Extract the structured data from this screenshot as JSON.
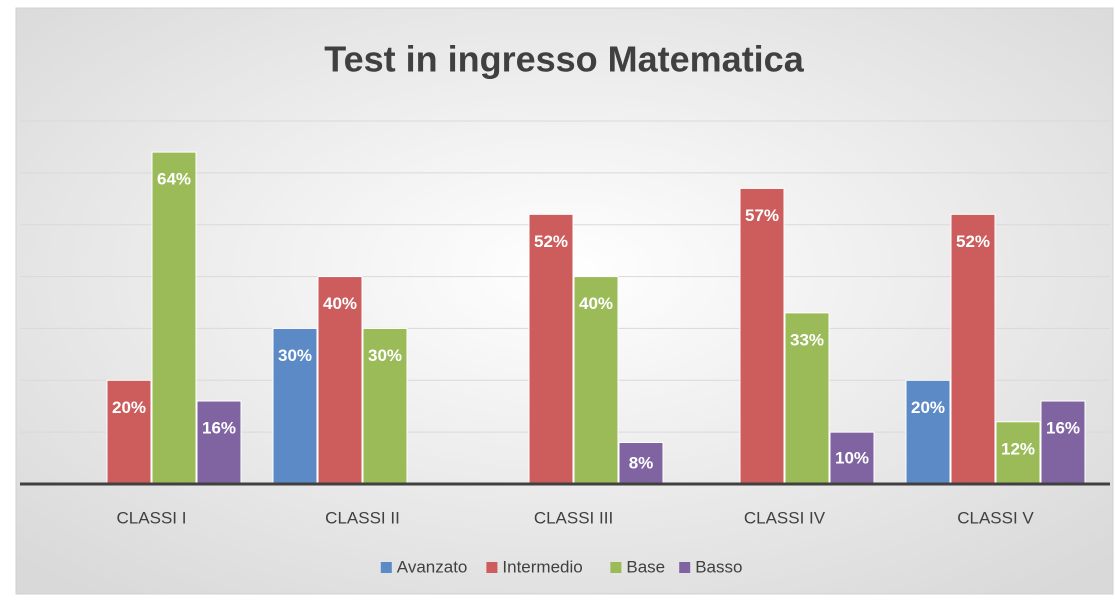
{
  "chart_data": {
    "type": "bar",
    "title": "Test in ingresso Matematica",
    "categories": [
      "CLASSI I",
      "CLASSI II",
      "CLASSI III",
      "CLASSI IV",
      "CLASSI V"
    ],
    "series": [
      {
        "name": "Avanzato",
        "color": "#5b8ac6",
        "values": [
          null,
          30,
          null,
          null,
          20
        ],
        "value_labels": [
          null,
          "30%",
          null,
          null,
          "20%"
        ]
      },
      {
        "name": "Intermedio",
        "color": "#cd5c5c",
        "values": [
          20,
          40,
          52,
          57,
          52
        ],
        "value_labels": [
          "20%",
          "40%",
          "52%",
          "57%",
          "52%"
        ]
      },
      {
        "name": "Base",
        "color": "#9bbb59",
        "values": [
          64,
          30,
          40,
          33,
          12
        ],
        "value_labels": [
          "64%",
          "30%",
          "40%",
          "33%",
          "12%"
        ]
      },
      {
        "name": "Basso",
        "color": "#8064a2",
        "values": [
          16,
          null,
          8,
          10,
          16
        ],
        "value_labels": [
          "16%",
          null,
          "8%",
          "10%",
          "16%"
        ]
      }
    ],
    "ylim": [
      0,
      70
    ],
    "yticks": [
      0,
      10,
      20,
      30,
      40,
      50,
      60,
      70
    ],
    "grid": true,
    "legend": "bottom"
  }
}
